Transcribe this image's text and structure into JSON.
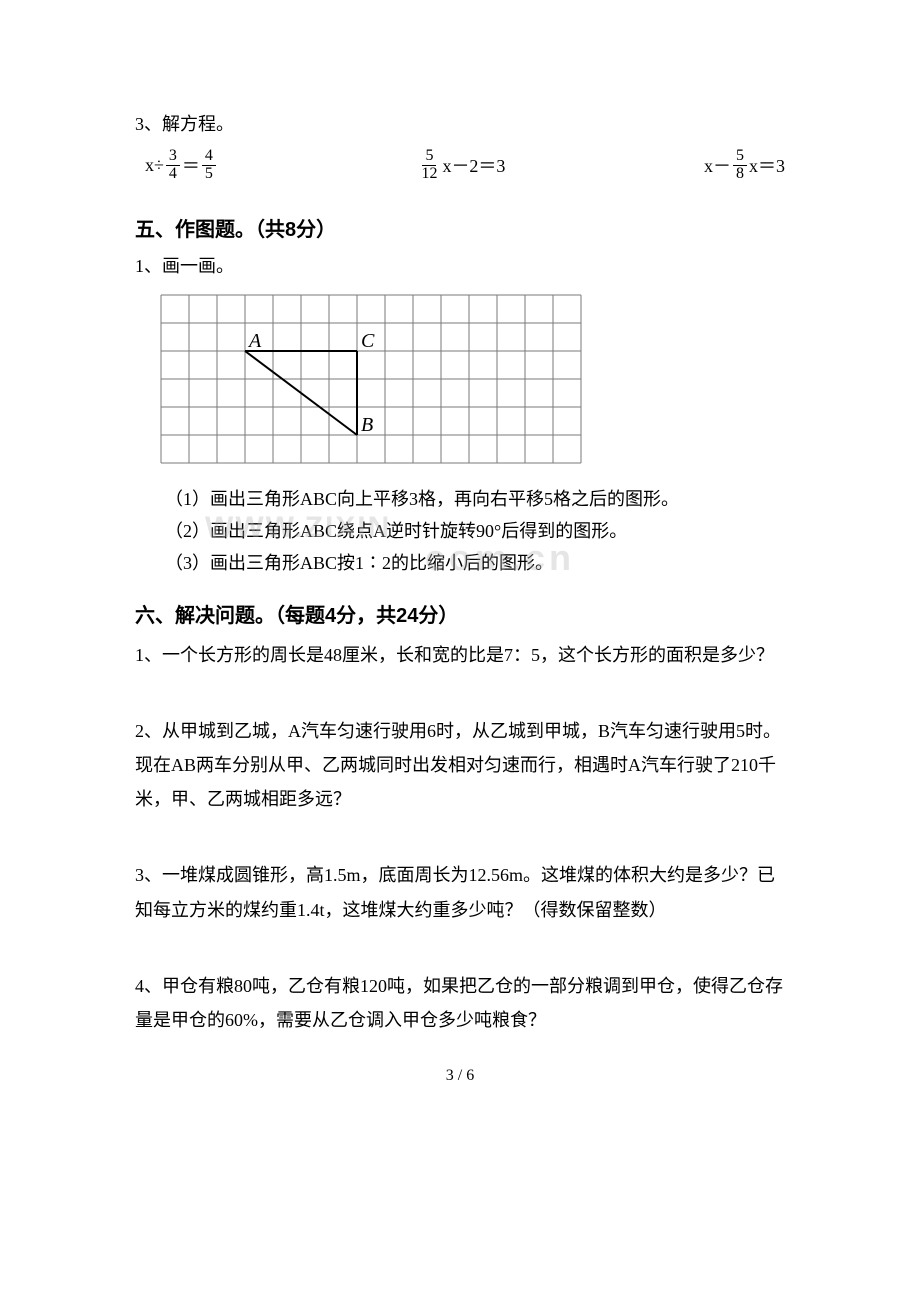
{
  "doc": {
    "q3_label": "3、解方程。",
    "eq1_left_pre": "x÷",
    "eq1_frac1": {
      "n": "3",
      "d": "4"
    },
    "eq1_mid": "＝",
    "eq1_frac2": {
      "n": "4",
      "d": "5"
    },
    "eq2_frac": {
      "n": "5",
      "d": "12"
    },
    "eq2_rest": "x－2＝3",
    "eq3_pre": "x－",
    "eq3_frac": {
      "n": "5",
      "d": "8"
    },
    "eq3_rest": "x＝3",
    "section5": "五、作图题。（共8分）",
    "s5_q1": "1、画一画。",
    "grid": {
      "cols": 15,
      "rows": 6,
      "cell": 28,
      "stroke": "#7a7a7a",
      "A": {
        "col": 3,
        "row": 2,
        "label": "A"
      },
      "B": {
        "col": 7,
        "row": 5,
        "label": "B"
      },
      "C": {
        "col": 7,
        "row": 2,
        "label": "C"
      },
      "font": "italic 20px 'Times New Roman'"
    },
    "s5_sub1": "（1）画出三角形ABC向上平移3格，再向右平移5格之后的图形。",
    "s5_sub2": "（2）画出三角形ABC绕点A逆时针旋转90°后得到的图形。",
    "s5_sub3": "（3）画出三角形ABC按1∶2的比缩小后的图形。",
    "watermark1": "WWW.ZIXIN",
    "watermark2": "com.cn",
    "section6": "六、解决问题。（每题4分，共24分）",
    "p1": "1、一个长方形的周长是48厘米，长和宽的比是7：5，这个长方形的面积是多少？",
    "p2": "2、从甲城到乙城，A汽车匀速行驶用6时，从乙城到甲城，B汽车匀速行驶用5时。现在AB两车分别从甲、乙两城同时出发相对匀速而行，相遇时A汽车行驶了210千米，甲、乙两城相距多远？",
    "p3": "3、一堆煤成圆锥形，高1.5m，底面周长为12.56m。这堆煤的体积大约是多少？已知每立方米的煤约重1.4t，这堆煤大约重多少吨？（得数保留整数）",
    "p4": "4、甲仓有粮80吨，乙仓有粮120吨，如果把乙仓的一部分粮调到甲仓，使得乙仓存量是甲仓的60%，需要从乙仓调入甲仓多少吨粮食？",
    "pagenum": "3 / 6"
  }
}
